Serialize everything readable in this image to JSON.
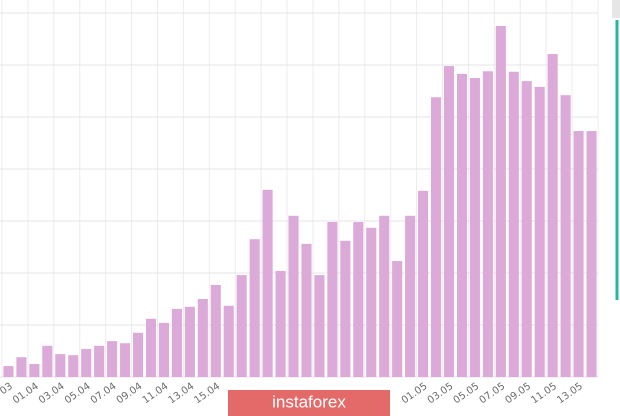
{
  "chart_data": {
    "type": "bar",
    "categories": [
      "03",
      null,
      "01.04",
      null,
      "03.04",
      null,
      "05.04",
      null,
      "07.04",
      null,
      "09.04",
      null,
      "11.04",
      null,
      "13.04",
      null,
      "15.04",
      null,
      null,
      null,
      null,
      null,
      null,
      null,
      null,
      null,
      null,
      null,
      null,
      null,
      null,
      null,
      "01.05",
      null,
      "03.05",
      null,
      "05.05",
      null,
      "07.05",
      null,
      "09.05",
      null,
      "11.05",
      null,
      "13.05",
      null
    ],
    "values": [
      0.21,
      0.38,
      0.25,
      0.6,
      0.44,
      0.42,
      0.54,
      0.6,
      0.69,
      0.65,
      0.85,
      1.12,
      1.04,
      1.31,
      1.35,
      1.5,
      1.77,
      1.37,
      1.96,
      2.65,
      3.6,
      2.04,
      3.1,
      2.56,
      1.96,
      2.98,
      2.62,
      2.98,
      2.87,
      3.1,
      2.23,
      3.1,
      3.58,
      5.38,
      5.98,
      5.83,
      5.75,
      5.88,
      6.75,
      5.87,
      5.69,
      5.58,
      6.21,
      5.42,
      4.73,
      4.73
    ],
    "color": "#dcaad9",
    "ylim": [
      0,
      7
    ],
    "yticks": [
      0,
      1,
      2,
      3,
      4,
      5,
      6,
      7
    ],
    "grid": true,
    "watermark": "instaforex"
  }
}
